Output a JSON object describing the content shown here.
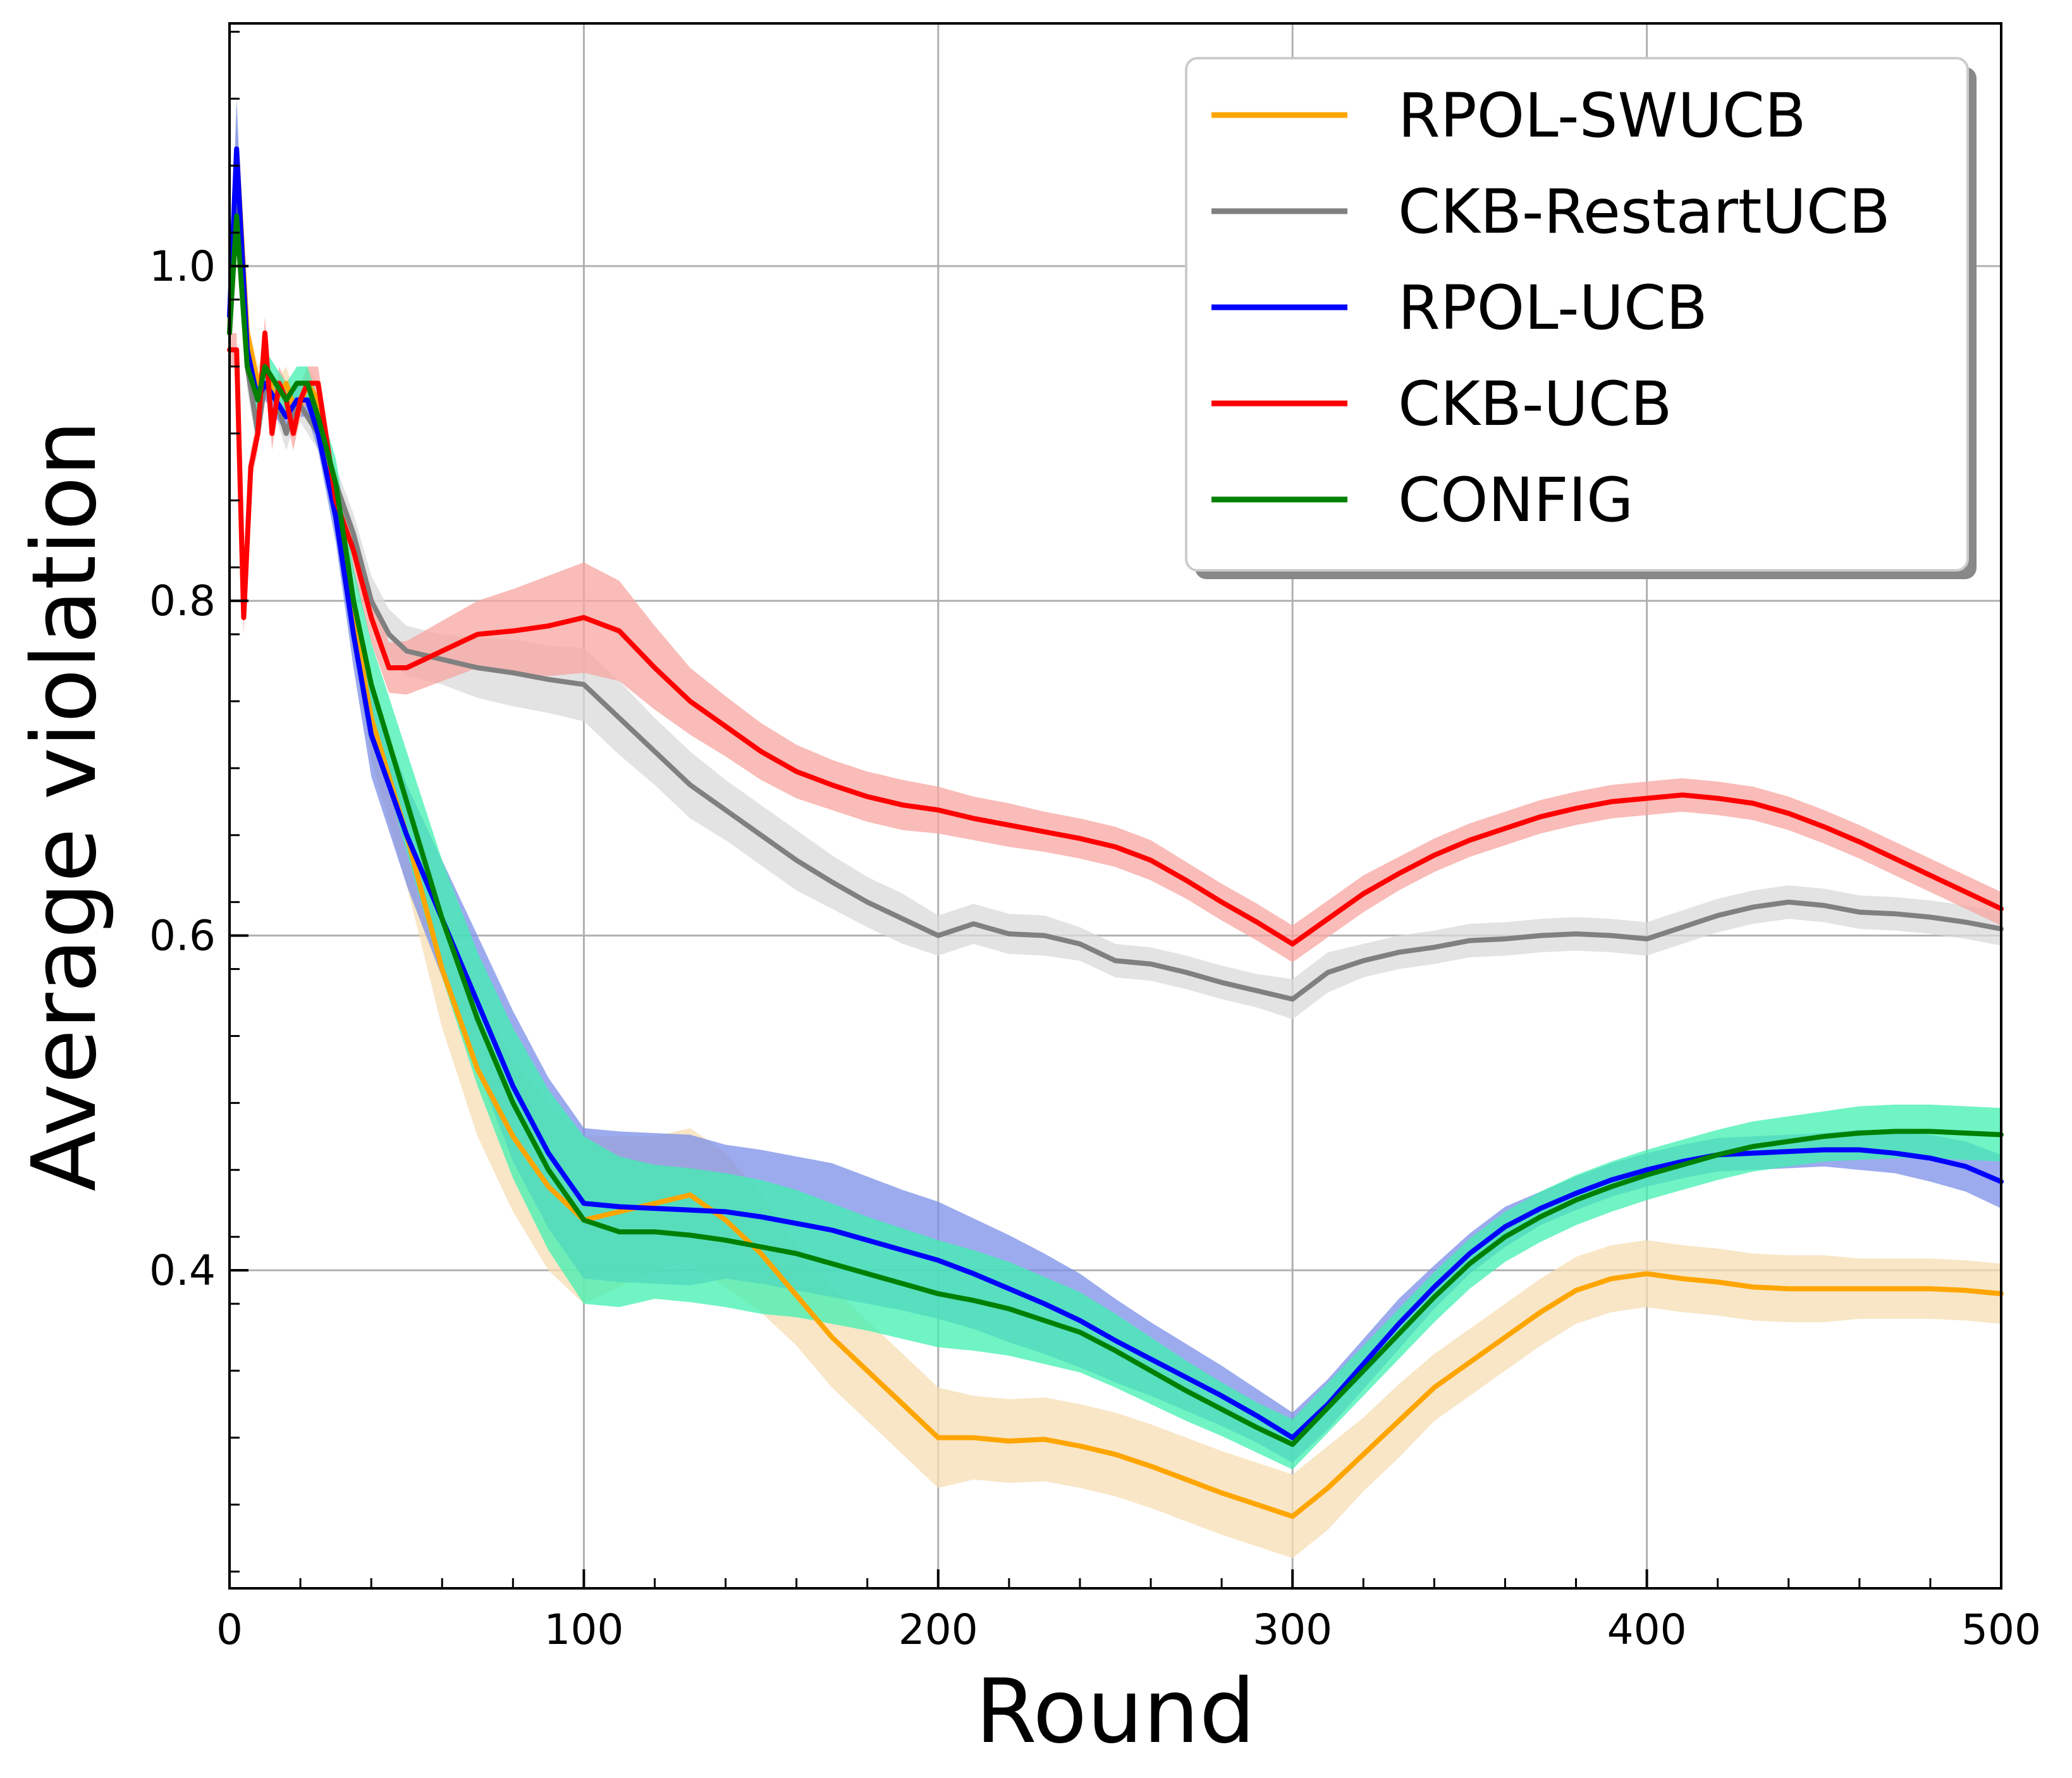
{
  "chart_data": {
    "type": "line",
    "title": "",
    "xlabel": "Round",
    "ylabel": "Average violation",
    "xlim": [
      0,
      500
    ],
    "ylim": [
      0.21,
      1.145
    ],
    "grid": true,
    "legend_position": "top-right",
    "x_ticks": [
      0,
      100,
      200,
      300,
      400,
      500
    ],
    "x_tick_labels": [
      "0",
      "100",
      "200",
      "300",
      "400",
      "500"
    ],
    "y_ticks": [
      0.4,
      0.6,
      0.8,
      1.0
    ],
    "y_tick_labels": [
      "0.4",
      "0.6",
      "0.8",
      "1.0"
    ],
    "series": [
      {
        "name": "RPOL-SWUCB",
        "color": "#FFA500",
        "band_color": "#F5DEB3",
        "x": [
          0,
          2,
          5,
          8,
          10,
          13,
          16,
          19,
          22,
          25,
          30,
          35,
          40,
          50,
          60,
          70,
          80,
          90,
          100,
          110,
          120,
          130,
          140,
          150,
          160,
          170,
          180,
          190,
          200,
          210,
          220,
          230,
          240,
          250,
          260,
          270,
          280,
          290,
          300,
          310,
          320,
          330,
          340,
          350,
          360,
          370,
          380,
          390,
          400,
          410,
          420,
          430,
          440,
          450,
          460,
          470,
          480,
          490,
          500
        ],
        "values": [
          0.96,
          1.07,
          0.96,
          0.93,
          0.94,
          0.92,
          0.93,
          0.91,
          0.93,
          0.92,
          0.86,
          0.79,
          0.73,
          0.66,
          0.58,
          0.52,
          0.48,
          0.45,
          0.43,
          0.435,
          0.44,
          0.445,
          0.43,
          0.41,
          0.385,
          0.36,
          0.34,
          0.32,
          0.3,
          0.3,
          0.298,
          0.299,
          0.295,
          0.29,
          0.283,
          0.275,
          0.267,
          0.26,
          0.253,
          0.27,
          0.29,
          0.31,
          0.33,
          0.345,
          0.36,
          0.375,
          0.388,
          0.395,
          0.398,
          0.395,
          0.393,
          0.39,
          0.389,
          0.389,
          0.389,
          0.389,
          0.389,
          0.388,
          0.386
        ],
        "spread": [
          0.01,
          0.02,
          0.01,
          0.01,
          0.01,
          0.01,
          0.01,
          0.01,
          0.01,
          0.01,
          0.015,
          0.02,
          0.025,
          0.03,
          0.035,
          0.04,
          0.045,
          0.05,
          0.05,
          0.045,
          0.04,
          0.04,
          0.04,
          0.035,
          0.03,
          0.03,
          0.03,
          0.03,
          0.03,
          0.025,
          0.025,
          0.025,
          0.025,
          0.025,
          0.025,
          0.025,
          0.025,
          0.025,
          0.025,
          0.025,
          0.022,
          0.022,
          0.02,
          0.02,
          0.02,
          0.02,
          0.02,
          0.02,
          0.02,
          0.02,
          0.02,
          0.02,
          0.02,
          0.02,
          0.018,
          0.018,
          0.018,
          0.018,
          0.018
        ]
      },
      {
        "name": "CKB-RestartUCB",
        "color": "#808080",
        "band_color": "#D9D9D9",
        "x": [
          0,
          2,
          5,
          8,
          10,
          13,
          16,
          19,
          22,
          25,
          30,
          35,
          40,
          45,
          50,
          60,
          70,
          80,
          90,
          100,
          110,
          120,
          130,
          140,
          150,
          160,
          170,
          180,
          190,
          200,
          210,
          220,
          230,
          240,
          250,
          260,
          270,
          280,
          290,
          300,
          310,
          320,
          330,
          340,
          350,
          360,
          370,
          380,
          390,
          400,
          410,
          420,
          430,
          440,
          450,
          460,
          470,
          480,
          490,
          500
        ],
        "values": [
          0.96,
          1.06,
          0.94,
          0.9,
          0.93,
          0.92,
          0.9,
          0.92,
          0.91,
          0.9,
          0.87,
          0.84,
          0.8,
          0.78,
          0.77,
          0.765,
          0.76,
          0.757,
          0.753,
          0.75,
          0.73,
          0.71,
          0.69,
          0.675,
          0.66,
          0.645,
          0.632,
          0.62,
          0.61,
          0.6,
          0.607,
          0.601,
          0.6,
          0.595,
          0.585,
          0.583,
          0.578,
          0.572,
          0.567,
          0.562,
          0.578,
          0.585,
          0.59,
          0.593,
          0.597,
          0.598,
          0.6,
          0.601,
          0.6,
          0.598,
          0.605,
          0.612,
          0.617,
          0.62,
          0.618,
          0.614,
          0.613,
          0.611,
          0.608,
          0.604
        ],
        "spread": [
          0.01,
          0.03,
          0.015,
          0.01,
          0.01,
          0.01,
          0.01,
          0.01,
          0.01,
          0.01,
          0.01,
          0.012,
          0.015,
          0.015,
          0.015,
          0.015,
          0.018,
          0.02,
          0.02,
          0.022,
          0.022,
          0.02,
          0.02,
          0.018,
          0.018,
          0.018,
          0.016,
          0.015,
          0.015,
          0.012,
          0.012,
          0.012,
          0.012,
          0.01,
          0.01,
          0.01,
          0.01,
          0.01,
          0.01,
          0.012,
          0.012,
          0.01,
          0.01,
          0.01,
          0.01,
          0.01,
          0.01,
          0.01,
          0.01,
          0.01,
          0.01,
          0.01,
          0.01,
          0.01,
          0.01,
          0.01,
          0.01,
          0.01,
          0.01,
          0.01
        ]
      },
      {
        "name": "RPOL-UCB",
        "color": "#0000FF",
        "band_color": "#7B8FE8",
        "x": [
          0,
          2,
          5,
          8,
          10,
          13,
          16,
          19,
          22,
          25,
          30,
          35,
          40,
          50,
          60,
          70,
          80,
          90,
          100,
          110,
          120,
          130,
          140,
          150,
          160,
          170,
          180,
          190,
          200,
          210,
          220,
          230,
          240,
          250,
          260,
          270,
          280,
          290,
          300,
          310,
          320,
          330,
          340,
          350,
          360,
          370,
          380,
          390,
          400,
          410,
          420,
          430,
          440,
          450,
          460,
          470,
          480,
          490,
          500
        ],
        "values": [
          0.97,
          1.07,
          0.95,
          0.92,
          0.93,
          0.92,
          0.91,
          0.92,
          0.92,
          0.9,
          0.85,
          0.78,
          0.72,
          0.66,
          0.61,
          0.56,
          0.51,
          0.47,
          0.44,
          0.438,
          0.437,
          0.436,
          0.435,
          0.432,
          0.428,
          0.424,
          0.418,
          0.412,
          0.406,
          0.398,
          0.389,
          0.38,
          0.37,
          0.358,
          0.347,
          0.336,
          0.325,
          0.313,
          0.3,
          0.32,
          0.344,
          0.368,
          0.39,
          0.41,
          0.426,
          0.437,
          0.446,
          0.454,
          0.46,
          0.465,
          0.469,
          0.47,
          0.471,
          0.472,
          0.472,
          0.47,
          0.467,
          0.462,
          0.453
        ],
        "spread": [
          0.01,
          0.03,
          0.01,
          0.01,
          0.01,
          0.01,
          0.01,
          0.01,
          0.01,
          0.01,
          0.015,
          0.02,
          0.025,
          0.03,
          0.035,
          0.04,
          0.045,
          0.045,
          0.045,
          0.045,
          0.045,
          0.045,
          0.04,
          0.04,
          0.04,
          0.04,
          0.038,
          0.036,
          0.035,
          0.033,
          0.032,
          0.03,
          0.028,
          0.025,
          0.022,
          0.02,
          0.018,
          0.016,
          0.015,
          0.015,
          0.015,
          0.015,
          0.013,
          0.012,
          0.012,
          0.01,
          0.01,
          0.01,
          0.01,
          0.01,
          0.01,
          0.01,
          0.01,
          0.01,
          0.012,
          0.012,
          0.014,
          0.015,
          0.016
        ]
      },
      {
        "name": "CKB-UCB",
        "color": "#FF0000",
        "band_color": "#F7A6A0",
        "x": [
          0,
          2,
          4,
          6,
          8,
          10,
          12,
          14,
          16,
          18,
          20,
          22,
          25,
          30,
          35,
          40,
          45,
          50,
          60,
          70,
          80,
          90,
          100,
          110,
          120,
          130,
          140,
          150,
          160,
          170,
          180,
          190,
          200,
          210,
          220,
          230,
          240,
          250,
          260,
          270,
          280,
          290,
          300,
          310,
          320,
          330,
          340,
          350,
          360,
          370,
          380,
          390,
          400,
          410,
          420,
          430,
          440,
          450,
          460,
          470,
          480,
          490,
          500
        ],
        "values": [
          0.95,
          0.95,
          0.79,
          0.88,
          0.9,
          0.96,
          0.9,
          0.93,
          0.92,
          0.9,
          0.92,
          0.93,
          0.93,
          0.86,
          0.83,
          0.79,
          0.76,
          0.76,
          0.77,
          0.78,
          0.782,
          0.785,
          0.79,
          0.782,
          0.76,
          0.74,
          0.725,
          0.71,
          0.698,
          0.69,
          0.683,
          0.678,
          0.675,
          0.67,
          0.666,
          0.662,
          0.658,
          0.653,
          0.645,
          0.633,
          0.62,
          0.608,
          0.595,
          0.61,
          0.625,
          0.637,
          0.648,
          0.657,
          0.664,
          0.671,
          0.676,
          0.68,
          0.682,
          0.684,
          0.682,
          0.679,
          0.673,
          0.665,
          0.656,
          0.646,
          0.636,
          0.626,
          0.616
        ],
        "spread": [
          0.01,
          0.01,
          0.01,
          0.01,
          0.01,
          0.01,
          0.01,
          0.01,
          0.01,
          0.01,
          0.01,
          0.01,
          0.01,
          0.012,
          0.015,
          0.015,
          0.015,
          0.016,
          0.018,
          0.02,
          0.025,
          0.03,
          0.033,
          0.03,
          0.025,
          0.02,
          0.018,
          0.017,
          0.016,
          0.015,
          0.015,
          0.015,
          0.014,
          0.013,
          0.013,
          0.012,
          0.012,
          0.012,
          0.012,
          0.011,
          0.011,
          0.011,
          0.011,
          0.011,
          0.011,
          0.01,
          0.01,
          0.01,
          0.01,
          0.01,
          0.01,
          0.01,
          0.01,
          0.01,
          0.01,
          0.01,
          0.01,
          0.01,
          0.01,
          0.01,
          0.01,
          0.01,
          0.01
        ]
      },
      {
        "name": "CONFIG",
        "color": "#008000",
        "band_color": "#40F0B0",
        "x": [
          0,
          2,
          5,
          8,
          10,
          13,
          16,
          19,
          22,
          25,
          30,
          35,
          40,
          50,
          60,
          70,
          80,
          90,
          100,
          110,
          120,
          130,
          140,
          150,
          160,
          170,
          180,
          190,
          200,
          210,
          220,
          230,
          240,
          250,
          260,
          270,
          280,
          290,
          300,
          310,
          320,
          330,
          340,
          350,
          360,
          370,
          380,
          390,
          400,
          410,
          420,
          430,
          440,
          450,
          460,
          470,
          480,
          490,
          500
        ],
        "values": [
          0.96,
          1.03,
          0.94,
          0.92,
          0.94,
          0.93,
          0.92,
          0.93,
          0.93,
          0.91,
          0.87,
          0.8,
          0.75,
          0.68,
          0.61,
          0.55,
          0.5,
          0.46,
          0.43,
          0.423,
          0.423,
          0.421,
          0.418,
          0.414,
          0.41,
          0.404,
          0.398,
          0.392,
          0.386,
          0.382,
          0.377,
          0.37,
          0.363,
          0.352,
          0.34,
          0.328,
          0.317,
          0.306,
          0.296,
          0.318,
          0.34,
          0.362,
          0.384,
          0.404,
          0.42,
          0.432,
          0.442,
          0.45,
          0.457,
          0.463,
          0.469,
          0.474,
          0.477,
          0.48,
          0.482,
          0.483,
          0.483,
          0.482,
          0.481
        ],
        "spread": [
          0.01,
          0.02,
          0.01,
          0.01,
          0.01,
          0.01,
          0.01,
          0.01,
          0.01,
          0.01,
          0.015,
          0.02,
          0.025,
          0.03,
          0.035,
          0.04,
          0.045,
          0.048,
          0.05,
          0.045,
          0.04,
          0.04,
          0.04,
          0.04,
          0.038,
          0.036,
          0.034,
          0.033,
          0.032,
          0.03,
          0.028,
          0.026,
          0.024,
          0.022,
          0.02,
          0.018,
          0.016,
          0.015,
          0.015,
          0.015,
          0.015,
          0.015,
          0.015,
          0.015,
          0.015,
          0.015,
          0.015,
          0.015,
          0.015,
          0.015,
          0.015,
          0.015,
          0.015,
          0.015,
          0.016,
          0.016,
          0.016,
          0.016,
          0.016
        ]
      }
    ]
  }
}
